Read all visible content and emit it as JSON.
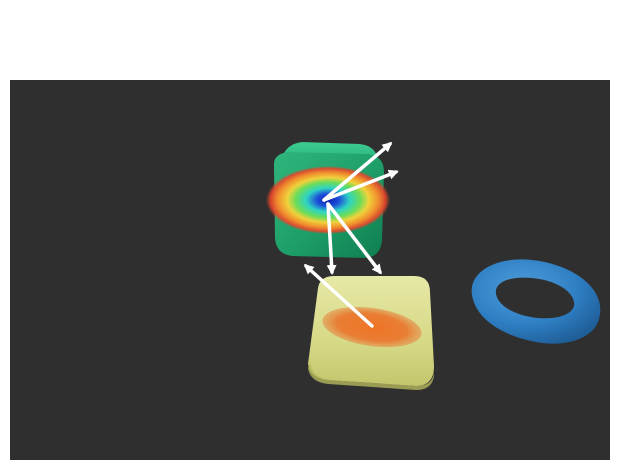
{
  "colors": {
    "background": "#ffffff",
    "viewport_background": "#2f2f2f",
    "cube_green": "#1fa06a",
    "cube_green_dark": "#0d7a4d",
    "cube_green_light": "#35c08a",
    "block_yellow": "#d9dc8c",
    "block_yellow_dark": "#b8bb63",
    "block_yellow_light": "#ecefb3",
    "torus_blue": "#2f7fc4",
    "torus_blue_dark": "#1f5f99",
    "torus_blue_light": "#4d9ad8",
    "heat_center": "#1a33c4",
    "heat_mid": "#2fd4c4",
    "heat_warm": "#f0d23c",
    "heat_outer": "#e8442c",
    "contact_patch": "#e9772a",
    "arrow": "#ffffff"
  },
  "scene": {
    "objects": [
      "green-cube",
      "yellow-block",
      "blue-torus"
    ],
    "overlays": [
      "heatmap-on-green-cube",
      "contact-patch-on-yellow-block",
      "force-arrows"
    ]
  }
}
